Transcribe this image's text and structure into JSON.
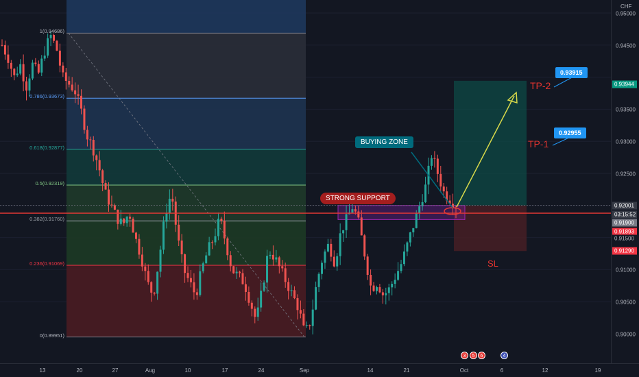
{
  "currency": "CHF",
  "y_axis_labels": [
    "0.95000",
    "0.94500",
    "0.93500",
    "0.93000",
    "0.92500",
    "0.91500",
    "0.91000",
    "0.90500",
    "0.90000"
  ],
  "price_tags": [
    {
      "text": "0.93944",
      "color": "#089981"
    },
    {
      "text": "0.92001",
      "color": "#363a45"
    },
    {
      "text": "03:15:52",
      "color": "#363a45"
    },
    {
      "text": "0.91900",
      "color": "#787b86"
    },
    {
      "text": "0.91893",
      "color": "#f23645"
    },
    {
      "text": "0.91500",
      "color": "#131722"
    },
    {
      "text": "0.91290",
      "color": "#f23645"
    }
  ],
  "x_axis_labels": [
    "13",
    "20",
    "27",
    "Aug",
    "10",
    "17",
    "24",
    "Sep",
    "14",
    "21",
    "Oct",
    "6",
    "12",
    "19"
  ],
  "fib_levels": [
    {
      "ratio": "1",
      "value": "0.94686",
      "label": "1(0.94686)",
      "price": 0.94686,
      "color": "#787b86"
    },
    {
      "ratio": "0.786",
      "value": "0.93673",
      "label": "0.786(0.93673)",
      "price": 0.93673,
      "color": "#5b9cf6"
    },
    {
      "ratio": "0.618",
      "value": "0.92877",
      "label": "0.618(0.92877)",
      "price": 0.92877,
      "color": "#26a69a"
    },
    {
      "ratio": "0.5",
      "value": "0.92319",
      "label": "0.5(0.92319)",
      "price": 0.92319,
      "color": "#81c784"
    },
    {
      "ratio": "0.382",
      "value": "0.91760",
      "label": "0.382(0.91760)",
      "price": 0.9176,
      "color": "#9aa0a6"
    },
    {
      "ratio": "0.236",
      "value": "0.91069",
      "label": "0.236(0.91069)",
      "price": 0.91069,
      "color": "#f23645"
    },
    {
      "ratio": "0",
      "value": "0.89951",
      "label": "0(0.89951)",
      "price": 0.89951,
      "color": "#787b86"
    }
  ],
  "annotations": {
    "buying_zone": "BUYING ZONE",
    "strong_support": "STRONG SUPPORT",
    "tp1_label": "TP-1",
    "tp2_label": "TP-2",
    "tp1_price": "0.92955",
    "tp2_price": "0.93915",
    "sl_label": "SL"
  },
  "colors": {
    "background": "#131722",
    "up": "#26a69a",
    "down": "#ef5350",
    "support_line": "#e53935",
    "arrow": "#d8d94a",
    "accent": "#2196f3"
  },
  "event_badges": [
    "3",
    "5",
    "6",
    "4"
  ],
  "chart_data": {
    "type": "candlestick",
    "symbol_currency": "CHF",
    "x_ticks": [
      "13",
      "20",
      "27",
      "Aug",
      "10",
      "17",
      "24",
      "Sep",
      "14",
      "21",
      "Oct",
      "6",
      "12",
      "19"
    ],
    "ylim": [
      0.8975,
      0.9525
    ],
    "price_path": [
      0.945,
      0.943,
      0.94,
      0.942,
      0.9385,
      0.942,
      0.9405,
      0.944,
      0.9465,
      0.9445,
      0.94,
      0.939,
      0.938,
      0.935,
      0.931,
      0.929,
      0.926,
      0.922,
      0.92,
      0.918,
      0.917,
      0.919,
      0.915,
      0.912,
      0.908,
      0.906,
      0.912,
      0.919,
      0.922,
      0.915,
      0.91,
      0.908,
      0.906,
      0.91,
      0.913,
      0.915,
      0.918,
      0.914,
      0.91,
      0.909,
      0.908,
      0.905,
      0.902,
      0.907,
      0.913,
      0.912,
      0.91,
      0.908,
      0.906,
      0.904,
      0.9,
      0.902,
      0.908,
      0.912,
      0.914,
      0.911,
      0.916,
      0.918,
      0.92,
      0.917,
      0.912,
      0.907,
      0.908,
      0.906,
      0.907,
      0.909,
      0.911,
      0.914,
      0.917,
      0.92,
      0.923,
      0.928,
      0.925,
      0.922,
      0.921,
      0.92
    ],
    "fibonacci": [
      {
        "ratio": 1,
        "price": 0.94686
      },
      {
        "ratio": 0.786,
        "price": 0.93673
      },
      {
        "ratio": 0.618,
        "price": 0.92877
      },
      {
        "ratio": 0.5,
        "price": 0.92319
      },
      {
        "ratio": 0.382,
        "price": 0.9176
      },
      {
        "ratio": 0.236,
        "price": 0.91069
      },
      {
        "ratio": 0,
        "price": 0.89951
      }
    ],
    "position": {
      "entry": 0.92001,
      "tp": 0.93944,
      "sl": 0.9129
    },
    "targets": [
      {
        "label": "TP-1",
        "price": 0.92955
      },
      {
        "label": "TP-2",
        "price": 0.93915
      }
    ],
    "current_price": 0.91893
  }
}
